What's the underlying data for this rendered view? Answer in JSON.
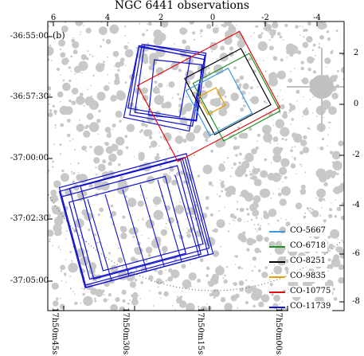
{
  "title": "NGC 6441 observations",
  "panel_label": "(b)",
  "top_axis_ticks": [
    "6",
    "4",
    "2",
    "0",
    "-2",
    "-4"
  ],
  "right_axis_ticks": [
    "2",
    "0",
    "-2",
    "-4",
    "-6",
    "-8"
  ],
  "left_axis_ticks": [
    "-36:55:00",
    "-36:57:30",
    "-37:00:00",
    "-37:02:30",
    "-37:05:00"
  ],
  "bottom_axis_ticks": [
    "17h50m45s",
    "17h50m30s",
    "17h50m15s",
    "17h50m00s"
  ],
  "legend": [
    {
      "label": "CO-5667",
      "color": "#3a9ad9"
    },
    {
      "label": "CO-6718",
      "color": "#1f8f1f"
    },
    {
      "label": "CO-8251",
      "color": "#000000"
    },
    {
      "label": "CO-9835",
      "color": "#e8a000"
    },
    {
      "label": "CO-10775",
      "color": "#e01010"
    },
    {
      "label": "CO-11739",
      "color": "#1010d0"
    }
  ],
  "colors": {
    "background_sky": "#ffffff",
    "stars": "#c8c8c8",
    "frame": "#000000",
    "guide_circle": "#555555"
  }
}
